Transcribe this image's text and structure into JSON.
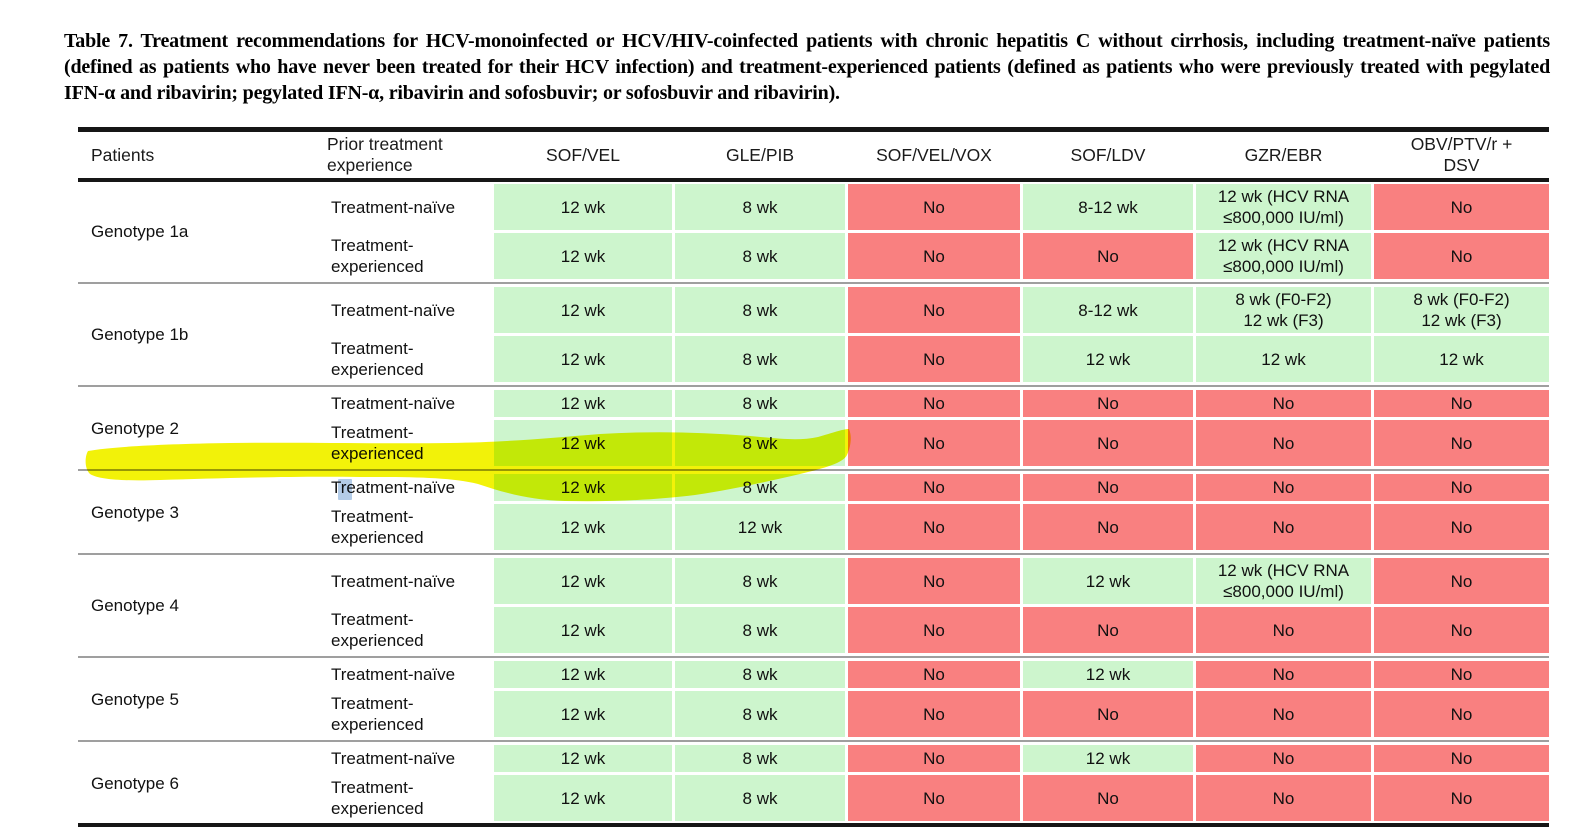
{
  "caption": {
    "text": "Table 7. Treatment recommendations for HCV-monoinfected or HCV/HIV-coinfected patients with chronic hepatitis C without cirrhosis, including treatment-naïve patients (defined as patients who have never been treated for their HCV infection) and treatment-experienced patients (defined as patients who were previously treated with pegylated IFN-α and ribavirin; pegylated IFN-α, ribavirin and sofosbuvir; or sofosbuvir and ribavirin)."
  },
  "table": {
    "columns": [
      "Patients",
      "Prior treatment experience",
      "SOF/VEL",
      "GLE/PIB",
      "SOF/VEL/VOX",
      "SOF/LDV",
      "GZR/EBR",
      "OBV/PTV/r +\nDSV"
    ],
    "groups": [
      {
        "genotype": "Genotype 1a",
        "rows": [
          {
            "experience": "Treatment-naïve",
            "cells": [
              {
                "text": "12 wk",
                "status": "yes"
              },
              {
                "text": "8 wk",
                "status": "yes"
              },
              {
                "text": "No",
                "status": "no"
              },
              {
                "text": "8-12 wk",
                "status": "yes"
              },
              {
                "text": "12 wk (HCV RNA\n≤800,000 IU/ml)",
                "status": "yes"
              },
              {
                "text": "No",
                "status": "no"
              }
            ]
          },
          {
            "experience": "Treatment-experienced",
            "cells": [
              {
                "text": "12 wk",
                "status": "yes"
              },
              {
                "text": "8 wk",
                "status": "yes"
              },
              {
                "text": "No",
                "status": "no"
              },
              {
                "text": "No",
                "status": "no"
              },
              {
                "text": "12 wk (HCV RNA\n≤800,000 IU/ml)",
                "status": "yes"
              },
              {
                "text": "No",
                "status": "no"
              }
            ]
          }
        ]
      },
      {
        "genotype": "Genotype 1b",
        "rows": [
          {
            "experience": "Treatment-naïve",
            "cells": [
              {
                "text": "12 wk",
                "status": "yes"
              },
              {
                "text": "8 wk",
                "status": "yes"
              },
              {
                "text": "No",
                "status": "no"
              },
              {
                "text": "8-12 wk",
                "status": "yes"
              },
              {
                "text": "8 wk (F0-F2)\n12 wk (F3)",
                "status": "yes"
              },
              {
                "text": "8 wk (F0-F2)\n12 wk (F3)",
                "status": "yes"
              }
            ]
          },
          {
            "experience": "Treatment-experienced",
            "cells": [
              {
                "text": "12 wk",
                "status": "yes"
              },
              {
                "text": "8 wk",
                "status": "yes"
              },
              {
                "text": "No",
                "status": "no"
              },
              {
                "text": "12 wk",
                "status": "yes"
              },
              {
                "text": "12 wk",
                "status": "yes"
              },
              {
                "text": "12 wk",
                "status": "yes"
              }
            ]
          }
        ]
      },
      {
        "genotype": "Genotype 2",
        "rows": [
          {
            "experience": "Treatment-naïve",
            "cells": [
              {
                "text": "12 wk",
                "status": "yes"
              },
              {
                "text": "8 wk",
                "status": "yes"
              },
              {
                "text": "No",
                "status": "no"
              },
              {
                "text": "No",
                "status": "no"
              },
              {
                "text": "No",
                "status": "no"
              },
              {
                "text": "No",
                "status": "no"
              }
            ]
          },
          {
            "experience": "Treatment-experienced",
            "cells": [
              {
                "text": "12 wk",
                "status": "yes"
              },
              {
                "text": "8 wk",
                "status": "yes"
              },
              {
                "text": "No",
                "status": "no"
              },
              {
                "text": "No",
                "status": "no"
              },
              {
                "text": "No",
                "status": "no"
              },
              {
                "text": "No",
                "status": "no"
              }
            ]
          }
        ]
      },
      {
        "genotype": "Genotype 3",
        "rows": [
          {
            "experience": "Treatment-naïve",
            "cells": [
              {
                "text": "12 wk",
                "status": "yes"
              },
              {
                "text": "8 wk",
                "status": "yes"
              },
              {
                "text": "No",
                "status": "no"
              },
              {
                "text": "No",
                "status": "no"
              },
              {
                "text": "No",
                "status": "no"
              },
              {
                "text": "No",
                "status": "no"
              }
            ]
          },
          {
            "experience": "Treatment-experienced",
            "cells": [
              {
                "text": "12 wk",
                "status": "yes"
              },
              {
                "text": "12 wk",
                "status": "yes"
              },
              {
                "text": "No",
                "status": "no"
              },
              {
                "text": "No",
                "status": "no"
              },
              {
                "text": "No",
                "status": "no"
              },
              {
                "text": "No",
                "status": "no"
              }
            ]
          }
        ]
      },
      {
        "genotype": "Genotype 4",
        "rows": [
          {
            "experience": "Treatment-naïve",
            "cells": [
              {
                "text": "12 wk",
                "status": "yes"
              },
              {
                "text": "8 wk",
                "status": "yes"
              },
              {
                "text": "No",
                "status": "no"
              },
              {
                "text": "12 wk",
                "status": "yes"
              },
              {
                "text": "12 wk (HCV RNA\n≤800,000 IU/ml)",
                "status": "yes"
              },
              {
                "text": "No",
                "status": "no"
              }
            ]
          },
          {
            "experience": "Treatment-experienced",
            "cells": [
              {
                "text": "12 wk",
                "status": "yes"
              },
              {
                "text": "8 wk",
                "status": "yes"
              },
              {
                "text": "No",
                "status": "no"
              },
              {
                "text": "No",
                "status": "no"
              },
              {
                "text": "No",
                "status": "no"
              },
              {
                "text": "No",
                "status": "no"
              }
            ]
          }
        ]
      },
      {
        "genotype": "Genotype 5",
        "rows": [
          {
            "experience": "Treatment-naïve",
            "cells": [
              {
                "text": "12 wk",
                "status": "yes"
              },
              {
                "text": "8 wk",
                "status": "yes"
              },
              {
                "text": "No",
                "status": "no"
              },
              {
                "text": "12 wk",
                "status": "yes"
              },
              {
                "text": "No",
                "status": "no"
              },
              {
                "text": "No",
                "status": "no"
              }
            ]
          },
          {
            "experience": "Treatment-experienced",
            "cells": [
              {
                "text": "12 wk",
                "status": "yes"
              },
              {
                "text": "8 wk",
                "status": "yes"
              },
              {
                "text": "No",
                "status": "no"
              },
              {
                "text": "No",
                "status": "no"
              },
              {
                "text": "No",
                "status": "no"
              },
              {
                "text": "No",
                "status": "no"
              }
            ]
          }
        ]
      },
      {
        "genotype": "Genotype 6",
        "rows": [
          {
            "experience": "Treatment-naïve",
            "cells": [
              {
                "text": "12 wk",
                "status": "yes"
              },
              {
                "text": "8 wk",
                "status": "yes"
              },
              {
                "text": "No",
                "status": "no"
              },
              {
                "text": "12 wk",
                "status": "yes"
              },
              {
                "text": "No",
                "status": "no"
              },
              {
                "text": "No",
                "status": "no"
              }
            ]
          },
          {
            "experience": "Treatment-experienced",
            "cells": [
              {
                "text": "12 wk",
                "status": "yes"
              },
              {
                "text": "8 wk",
                "status": "yes"
              },
              {
                "text": "No",
                "status": "no"
              },
              {
                "text": "No",
                "status": "no"
              },
              {
                "text": "No",
                "status": "no"
              },
              {
                "text": "No",
                "status": "no"
              }
            ]
          }
        ]
      }
    ],
    "legend_colors": {
      "recommended_bg": "#cdf5cd",
      "not_recommended_bg": "#f98080"
    }
  },
  "annotations": {
    "highlighter": {
      "type": "highlighter-stroke",
      "color": "#f2f209",
      "over": "Genotype 3 Treatment-naïve row (Treatment-naïve, 12 wk, 8 wk)"
    },
    "cursor_artifact": {
      "type": "selection-mark",
      "color": "#b3cce8",
      "over": "letter x in Treatment-experienced (Genotype 3)"
    }
  }
}
